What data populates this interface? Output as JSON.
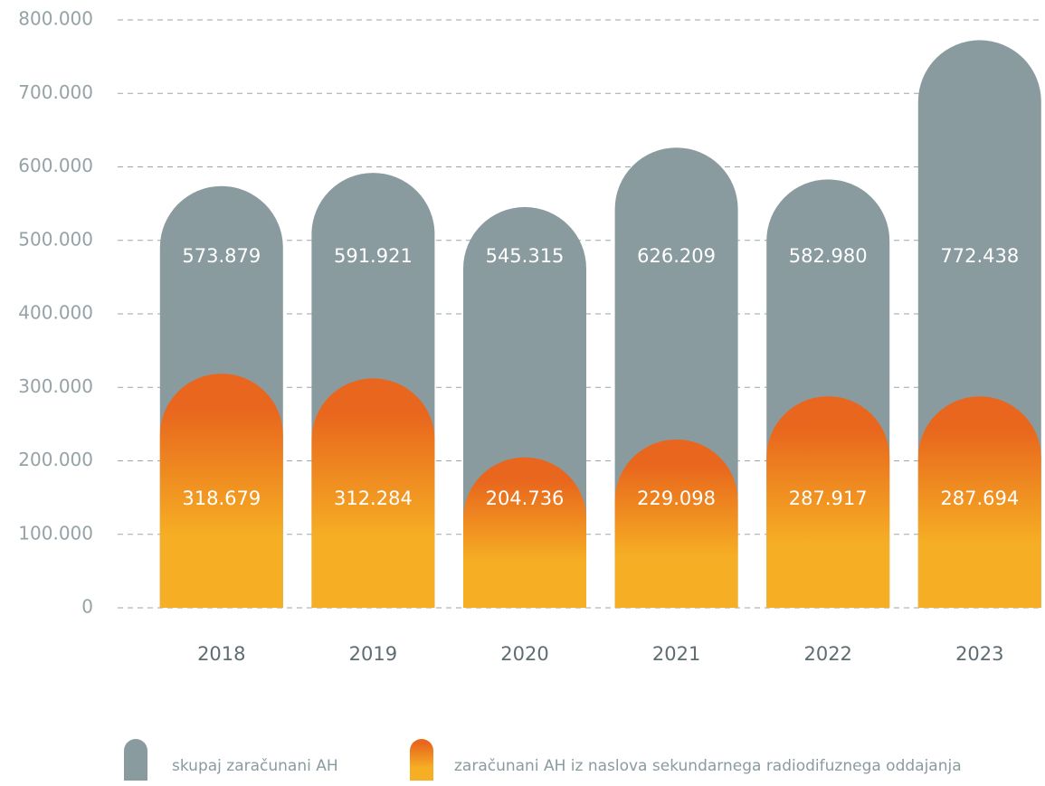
{
  "chart_data": {
    "type": "bar",
    "overlap": true,
    "categories": [
      "2018",
      "2019",
      "2020",
      "2021",
      "2022",
      "2023"
    ],
    "series": [
      {
        "name": "skupaj zaračunani AH",
        "color": "#8a9ba0",
        "values": [
          573879,
          591921,
          545315,
          626209,
          582980,
          772438
        ],
        "value_labels": [
          "573.879",
          "591.921",
          "545.315",
          "626.209",
          "582.980",
          "772.438"
        ]
      },
      {
        "name": "zaračunani AH iz naslova sekundarnega radiodifuznega oddajanja",
        "color": "#ef7d1f",
        "gradient": [
          "#e8661d",
          "#f6af24"
        ],
        "values": [
          318679,
          312284,
          204736,
          229098,
          287917,
          287694
        ],
        "value_labels": [
          "318.679",
          "312.284",
          "204.736",
          "229.098",
          "287.917",
          "287.694"
        ]
      }
    ],
    "ylim": [
      0,
      800000
    ],
    "yticks": [
      0,
      {
        "value": 100000,
        "label": "100.000"
      },
      {
        "value": 200000,
        "label": "200.000"
      },
      {
        "value": 300000,
        "label": "300.000"
      },
      {
        "value": 400000,
        "label": "400.000"
      },
      {
        "value": 500000,
        "label": "500.000"
      },
      {
        "value": 600000,
        "label": "600.000"
      },
      {
        "value": 700000,
        "label": "700.000"
      },
      {
        "value": 800000,
        "label": "800.000"
      }
    ],
    "grid": true,
    "legend": "bottom"
  }
}
